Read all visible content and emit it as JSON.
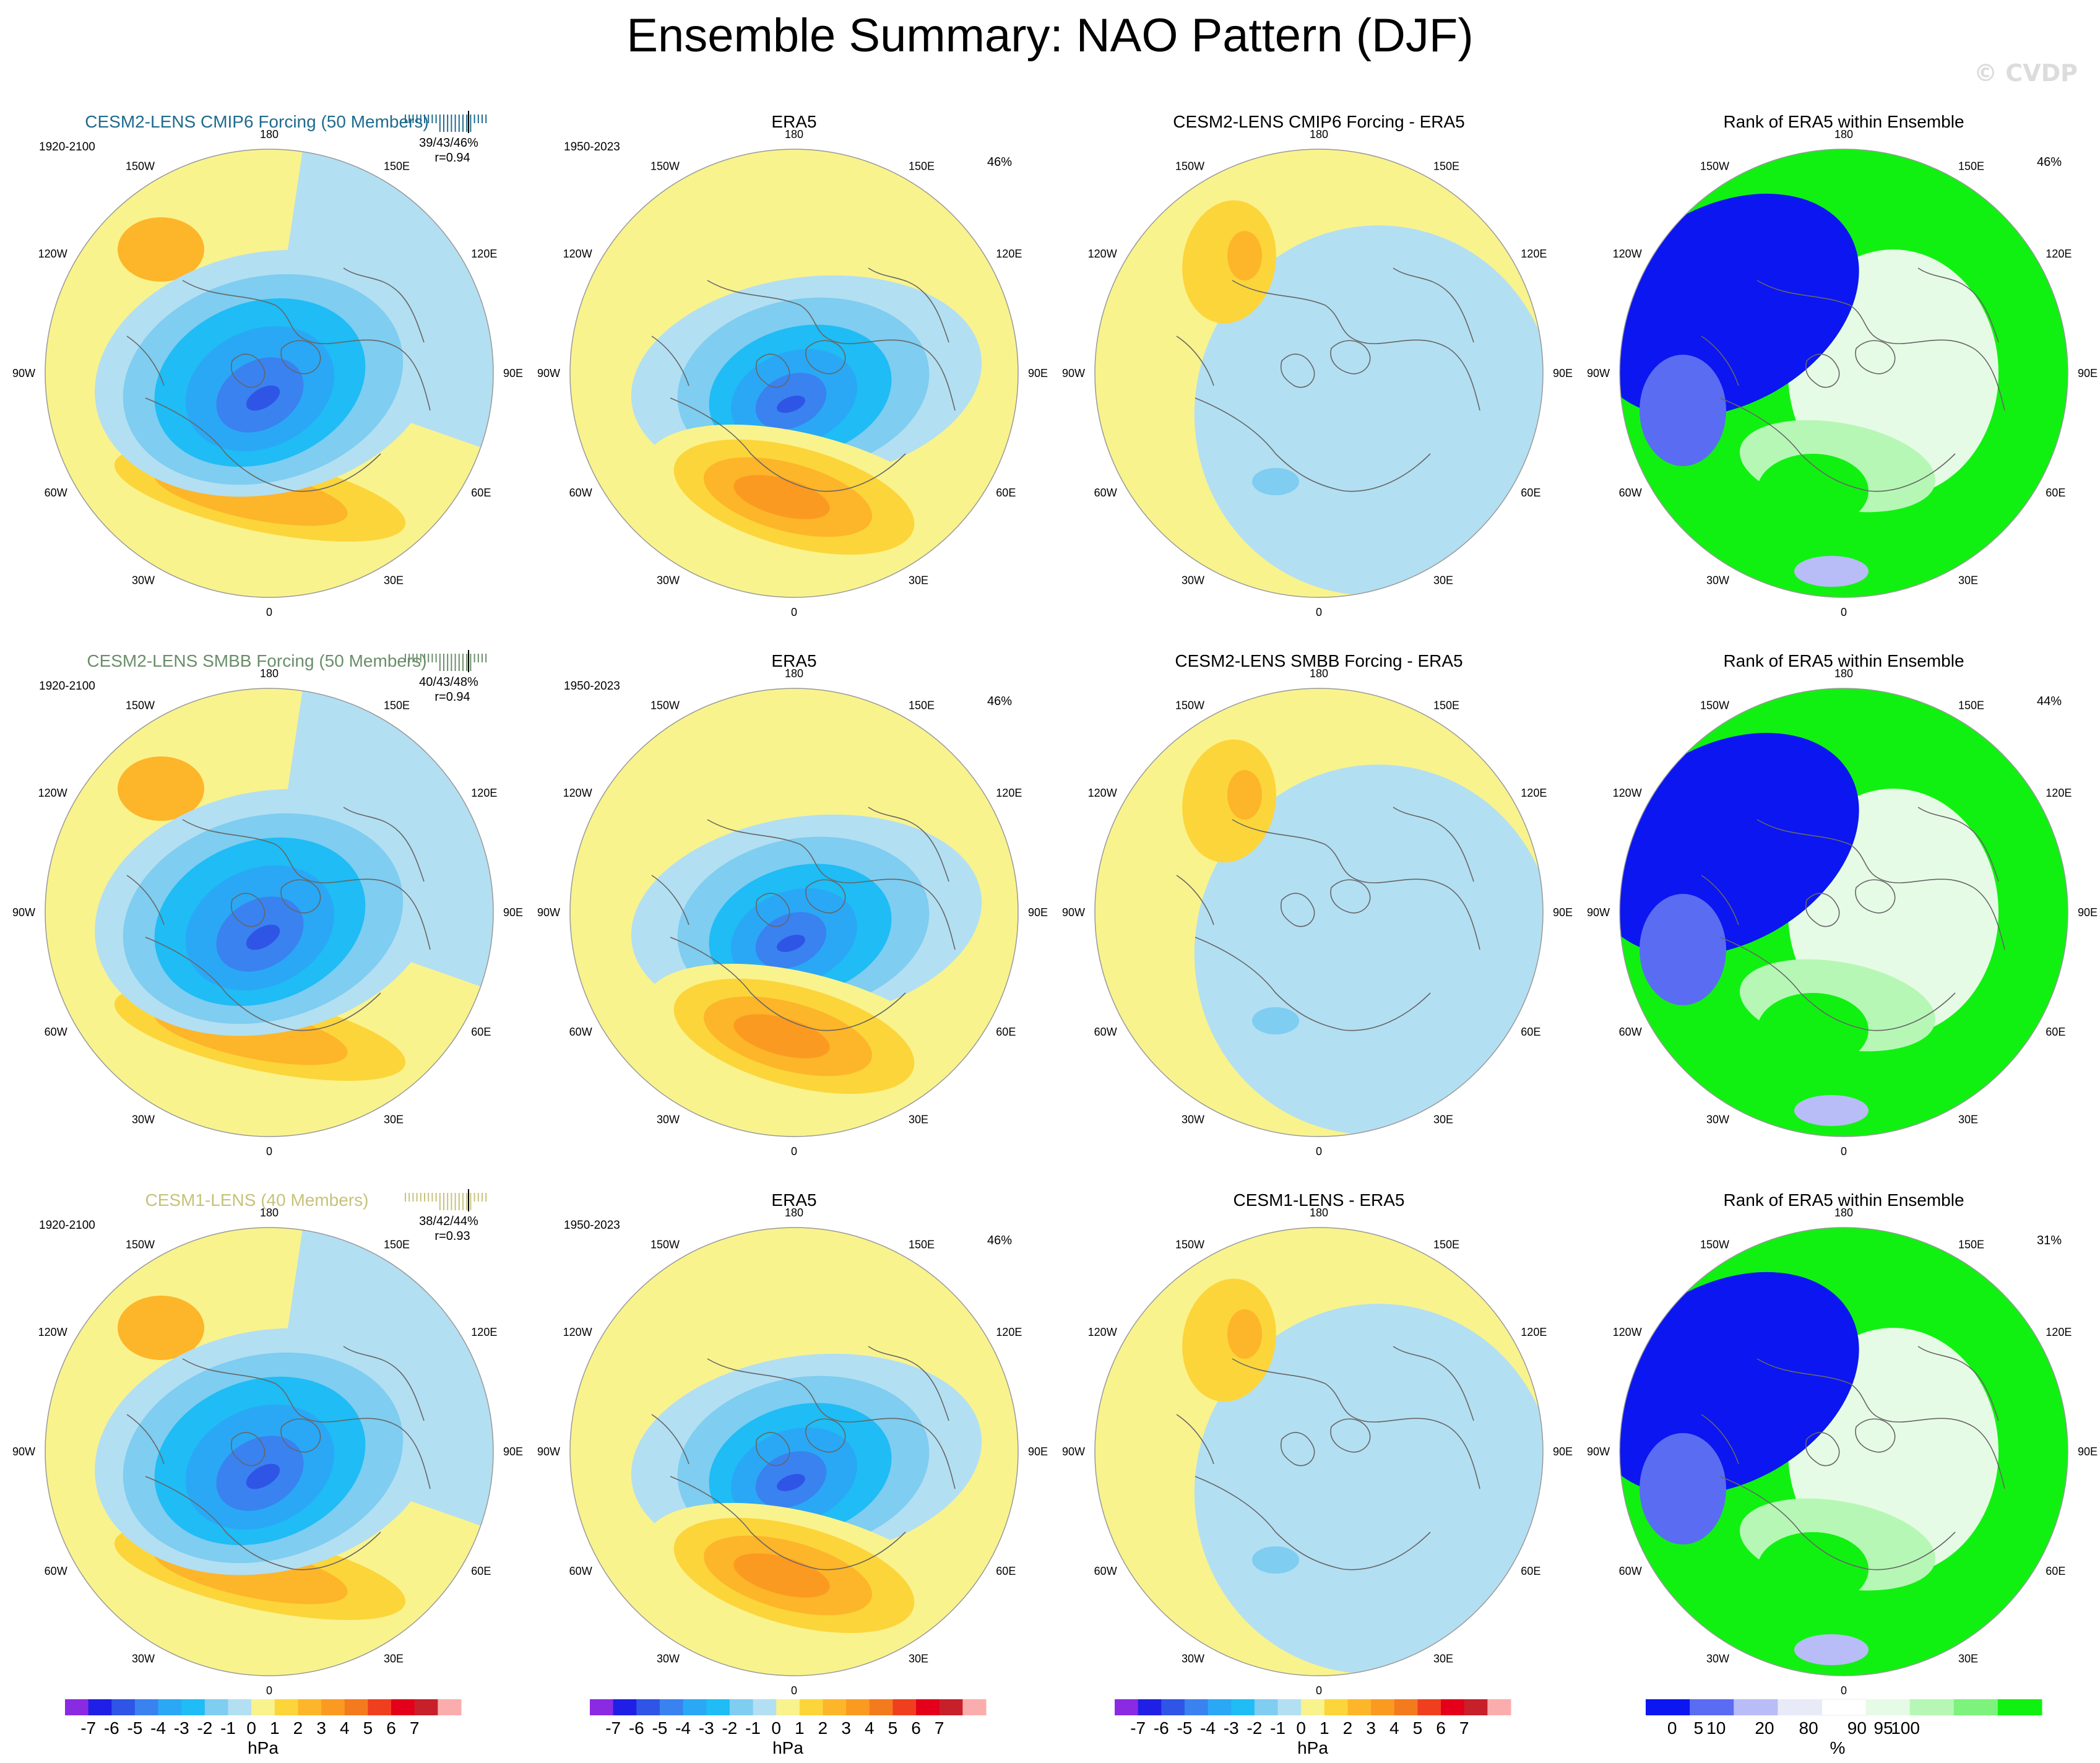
{
  "title": "Ensemble Summary: NAO Pattern (DJF)",
  "watermark": "© CVDP",
  "colors": {
    "model_title_rows": [
      "#1f6b8f",
      "#6a8e6a",
      "#c7c27a"
    ],
    "hpa_levels": [
      "#8a2be2",
      "#1f1fe6",
      "#2f55e6",
      "#3a82f0",
      "#2aa8f5",
      "#1fbcf5",
      "#7fcdf0",
      "#b3dff2",
      "#f9f38e",
      "#fcd53a",
      "#fdb52a",
      "#fb9a20",
      "#f47a1e",
      "#ef3f1f",
      "#e4001a",
      "#c8202a",
      "#fbadad"
    ],
    "rank_levels": [
      "#0b16f0",
      "#5a6cf2",
      "#b8bcf7",
      "#e8eaf8",
      "#ffffff",
      "#e6fbe6",
      "#b6f7b6",
      "#7df27d",
      "#11f111"
    ]
  },
  "panels": [
    {
      "row": 0,
      "col": 0,
      "kind": "model",
      "title": "CESM2-LENS CMIP6 Forcing (50 Members)",
      "period": "1920-2100",
      "stats": "39/43/46%",
      "corr": "r=0.94"
    },
    {
      "row": 0,
      "col": 1,
      "kind": "obs",
      "title": "ERA5",
      "period": "1950-2023",
      "pct": "46%"
    },
    {
      "row": 0,
      "col": 2,
      "kind": "diff",
      "title": "CESM2-LENS CMIP6 Forcing - ERA5"
    },
    {
      "row": 0,
      "col": 3,
      "kind": "rank",
      "title": "Rank of ERA5 within Ensemble",
      "pct": "46%"
    },
    {
      "row": 1,
      "col": 0,
      "kind": "model",
      "title": "CESM2-LENS SMBB Forcing (50 Members)",
      "period": "1920-2100",
      "stats": "40/43/48%",
      "corr": "r=0.94"
    },
    {
      "row": 1,
      "col": 1,
      "kind": "obs",
      "title": "ERA5",
      "period": "1950-2023",
      "pct": "46%"
    },
    {
      "row": 1,
      "col": 2,
      "kind": "diff",
      "title": "CESM2-LENS SMBB Forcing - ERA5"
    },
    {
      "row": 1,
      "col": 3,
      "kind": "rank",
      "title": "Rank of ERA5 within Ensemble",
      "pct": "44%"
    },
    {
      "row": 2,
      "col": 0,
      "kind": "model",
      "title": "CESM1-LENS (40 Members)",
      "period": "1920-2100",
      "stats": "38/42/44%",
      "corr": "r=0.93"
    },
    {
      "row": 2,
      "col": 1,
      "kind": "obs",
      "title": "ERA5",
      "period": "1950-2023",
      "pct": "46%"
    },
    {
      "row": 2,
      "col": 2,
      "kind": "diff",
      "title": "CESM1-LENS - ERA5"
    },
    {
      "row": 2,
      "col": 3,
      "kind": "rank",
      "title": "Rank of ERA5 within Ensemble",
      "pct": "31%"
    }
  ],
  "chart_data": {
    "type": "map",
    "projection": "north polar stereographic",
    "longitude_labels": [
      "180",
      "150E",
      "120E",
      "90E",
      "60E",
      "30E",
      "0",
      "30W",
      "60W",
      "90W",
      "120W",
      "150W"
    ],
    "colorbar_hpa": {
      "ticks": [
        "-7",
        "-6",
        "-5",
        "-4",
        "-3",
        "-2",
        "-1",
        "0",
        "1",
        "2",
        "3",
        "4",
        "5",
        "6",
        "7"
      ],
      "unit": "hPa"
    },
    "colorbar_rank": {
      "ticks": [
        "0",
        "5",
        "10",
        "20",
        "80",
        "90",
        "95",
        "100"
      ],
      "unit": "%"
    }
  }
}
